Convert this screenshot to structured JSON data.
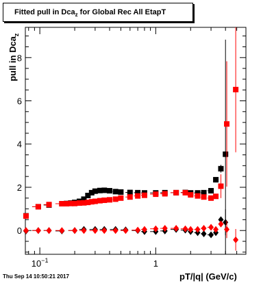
{
  "title_prefix": "Fitted pull in Dca",
  "title_sub": "z",
  "title_suffix": " for Global Rec All EtapT",
  "ylabel_prefix": "pull in Dca",
  "ylabel_sub": "z",
  "xlabel": "pT/|q| (GeV/c)",
  "timestamp": "Thu Sep 14 10:50:21 2017",
  "chart_data": {
    "type": "scatter",
    "title": "Fitted pull in Dca_z for Global Rec All EtapT",
    "xlabel": "pT/|q| (GeV/c)",
    "ylabel": "pull in Dca_z",
    "x_scale": "log",
    "xlim": [
      0.075,
      6.0
    ],
    "ylim": [
      -1.1,
      9.4
    ],
    "x_tick_labels": [
      {
        "value": 0.1,
        "base": "10",
        "exp": "−1"
      },
      {
        "value": 1,
        "base": "1",
        "exp": ""
      }
    ],
    "y_ticks": [
      0,
      2,
      4,
      6,
      8
    ],
    "grid": false,
    "series": [
      {
        "color": "#000000",
        "marker": "square",
        "points": [
          [
            0.076,
            0.68
          ],
          [
            0.097,
            1.1
          ],
          [
            0.12,
            1.18
          ],
          [
            0.155,
            1.24
          ],
          [
            0.17,
            1.25
          ],
          [
            0.185,
            1.27
          ],
          [
            0.2,
            1.3
          ],
          [
            0.22,
            1.35
          ],
          [
            0.24,
            1.45
          ],
          [
            0.26,
            1.62
          ],
          [
            0.28,
            1.75
          ],
          [
            0.3,
            1.82
          ],
          [
            0.33,
            1.85
          ],
          [
            0.36,
            1.86
          ],
          [
            0.4,
            1.84
          ],
          [
            0.45,
            1.8
          ],
          [
            0.5,
            1.78
          ],
          [
            0.6,
            1.76
          ],
          [
            0.7,
            1.75
          ],
          [
            0.8,
            1.74
          ],
          [
            1.0,
            1.74
          ],
          [
            1.2,
            1.75
          ],
          [
            1.5,
            1.75
          ],
          [
            1.8,
            1.76
          ],
          [
            2.0,
            1.74
          ],
          [
            2.3,
            1.74
          ],
          [
            2.6,
            1.75
          ],
          [
            3.0,
            1.84
          ],
          [
            3.3,
            2.35
          ],
          [
            3.65,
            2.86
          ],
          [
            4.0,
            3.53
          ]
        ],
        "y_err": [
          0,
          0,
          0,
          0,
          0,
          0,
          0,
          0,
          0,
          0,
          0,
          0,
          0,
          0,
          0,
          0,
          0,
          0,
          0,
          0,
          0,
          0,
          0,
          0,
          0,
          0,
          0,
          0,
          0.12,
          0.18,
          5.3
        ]
      },
      {
        "color": "#ff0000",
        "marker": "square",
        "points": [
          [
            0.076,
            0.67
          ],
          [
            0.097,
            1.1
          ],
          [
            0.12,
            1.2
          ],
          [
            0.155,
            1.24
          ],
          [
            0.17,
            1.24
          ],
          [
            0.185,
            1.25
          ],
          [
            0.2,
            1.25
          ],
          [
            0.22,
            1.27
          ],
          [
            0.24,
            1.28
          ],
          [
            0.26,
            1.3
          ],
          [
            0.28,
            1.33
          ],
          [
            0.3,
            1.35
          ],
          [
            0.33,
            1.38
          ],
          [
            0.36,
            1.4
          ],
          [
            0.4,
            1.42
          ],
          [
            0.45,
            1.45
          ],
          [
            0.5,
            1.5
          ],
          [
            0.6,
            1.55
          ],
          [
            0.7,
            1.6
          ],
          [
            0.8,
            1.63
          ],
          [
            1.0,
            1.68
          ],
          [
            1.2,
            1.7
          ],
          [
            1.5,
            1.75
          ],
          [
            1.8,
            1.75
          ],
          [
            2.0,
            1.65
          ],
          [
            2.3,
            1.6
          ],
          [
            2.6,
            1.55
          ],
          [
            3.0,
            1.5
          ],
          [
            3.3,
            1.58
          ],
          [
            3.65,
            2.05
          ],
          [
            4.1,
            4.93
          ],
          [
            4.9,
            6.52
          ]
        ],
        "y_err": [
          0,
          0,
          0,
          0,
          0,
          0,
          0,
          0,
          0,
          0,
          0,
          0,
          0,
          0,
          0,
          0,
          0,
          0,
          0,
          0,
          0,
          0,
          0,
          0,
          0,
          0,
          0,
          0,
          0.1,
          0.55,
          2.9,
          2.9
        ]
      },
      {
        "color": "#000000",
        "marker": "diamond",
        "points": [
          [
            0.076,
            -0.02
          ],
          [
            0.097,
            0.0
          ],
          [
            0.12,
            0.0
          ],
          [
            0.155,
            -0.02
          ],
          [
            0.2,
            0.0
          ],
          [
            0.24,
            0.05
          ],
          [
            0.3,
            0.05
          ],
          [
            0.36,
            0.05
          ],
          [
            0.45,
            0.05
          ],
          [
            0.55,
            0.03
          ],
          [
            0.7,
            0.0
          ],
          [
            0.8,
            -0.05
          ],
          [
            1.0,
            -0.05
          ],
          [
            1.2,
            -0.02
          ],
          [
            1.5,
            0.05
          ],
          [
            1.8,
            0.02
          ],
          [
            2.0,
            -0.05
          ],
          [
            2.3,
            -0.1
          ],
          [
            2.6,
            -0.15
          ],
          [
            3.0,
            -0.2
          ],
          [
            3.3,
            -0.1
          ],
          [
            3.65,
            0.5
          ],
          [
            4.0,
            0.38
          ]
        ],
        "y_err": [
          0,
          0,
          0,
          0,
          0,
          0,
          0,
          0,
          0,
          0,
          0,
          0,
          0,
          0,
          0,
          0,
          0,
          0,
          0,
          0,
          0,
          0.1,
          0.6
        ]
      },
      {
        "color": "#ff0000",
        "marker": "diamond",
        "points": [
          [
            0.076,
            0.0
          ],
          [
            0.097,
            0.0
          ],
          [
            0.12,
            0.0
          ],
          [
            0.155,
            0.0
          ],
          [
            0.2,
            0.0
          ],
          [
            0.24,
            0.0
          ],
          [
            0.3,
            0.0
          ],
          [
            0.36,
            0.0
          ],
          [
            0.45,
            0.0
          ],
          [
            0.55,
            0.0
          ],
          [
            0.7,
            0.02
          ],
          [
            0.8,
            0.05
          ],
          [
            1.0,
            0.08
          ],
          [
            1.2,
            0.1
          ],
          [
            1.5,
            0.1
          ],
          [
            1.8,
            0.08
          ],
          [
            2.0,
            0.05
          ],
          [
            2.3,
            0.05
          ],
          [
            2.6,
            0.1
          ],
          [
            3.0,
            0.15
          ],
          [
            3.3,
            0.05
          ],
          [
            3.65,
            0.3
          ],
          [
            4.1,
            0.05
          ],
          [
            4.9,
            -0.43
          ]
        ],
        "y_err": [
          0,
          0,
          0,
          0,
          0,
          0,
          0,
          0,
          0,
          0,
          0,
          0,
          0,
          0,
          0,
          0,
          0,
          0,
          0,
          0,
          0,
          0.1,
          0.4,
          0.5
        ]
      }
    ]
  }
}
